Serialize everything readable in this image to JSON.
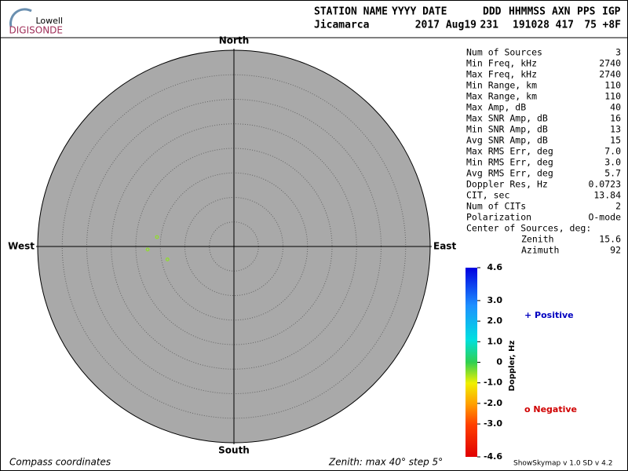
{
  "logo": {
    "line1": "Lowell",
    "line2": "DIGISONDE"
  },
  "header": {
    "columns": [
      "STATION NAME",
      "YYYY DATE",
      "DDD",
      "HHMMSS",
      "AXN",
      "PPS",
      "IGP"
    ],
    "values": [
      "Jicamarca",
      "2017 Aug19",
      "231",
      "191028",
      "417",
      "75",
      "+8F"
    ]
  },
  "plot": {
    "zenith_max": 40,
    "zenith_step": 5,
    "compass": {
      "north": "North",
      "south": "South",
      "east": "East",
      "west": "West"
    },
    "sources": [
      {
        "zenith": 15.8,
        "azimuth": 277,
        "doppler": -0.5
      },
      {
        "zenith": 17.6,
        "azimuth": 268,
        "doppler": -0.5
      },
      {
        "zenith": 13.8,
        "azimuth": 259,
        "doppler": -0.5
      }
    ]
  },
  "stats": {
    "rows": [
      [
        "Num of Sources",
        "3"
      ],
      [
        "Min Freq, kHz",
        "2740"
      ],
      [
        "Max Freq, kHz",
        "2740"
      ],
      [
        "Min Range, km",
        "110"
      ],
      [
        "Max Range, km",
        "110"
      ],
      [
        "Max Amp, dB",
        "40"
      ],
      [
        "Max SNR Amp, dB",
        "16"
      ],
      [
        "Min SNR Amp, dB",
        "13"
      ],
      [
        "Avg SNR Amp, dB",
        "15"
      ],
      [
        "Max RMS Err, deg",
        "7.0"
      ],
      [
        "Min RMS Err, deg",
        "3.0"
      ],
      [
        "Avg RMS Err, deg",
        "5.7"
      ],
      [
        "Doppler Res, Hz",
        "0.0723"
      ],
      [
        "CIT, sec",
        "13.84"
      ],
      [
        "Num of CITs",
        "2"
      ],
      [
        "Polarization",
        "O-mode"
      ]
    ],
    "center_title": "Center of Sources, deg:",
    "center_rows": [
      [
        "Zenith",
        "15.6"
      ],
      [
        "Azimuth",
        "92"
      ]
    ]
  },
  "colorbar": {
    "label": "Doppler, Hz",
    "lim": [
      -4.6,
      4.6
    ],
    "ticks": [
      4.6,
      {
        "value": 3,
        "label": "3.0"
      },
      {
        "value": 2,
        "label": "2.0"
      },
      {
        "value": 1,
        "label": "1.0"
      },
      0,
      {
        "value": -1,
        "label": "-1.0"
      },
      {
        "value": -2,
        "label": "-2.0"
      },
      {
        "value": -3,
        "label": "-3.0"
      },
      -4.6
    ]
  },
  "legend": {
    "positive": "+ Positive",
    "negative": "o Negative"
  },
  "footer": {
    "left": "Compass coordinates",
    "center": "Zenith: max 40°  step 5°",
    "right": "ShowSkymap v 1.0  SD v 4.2"
  }
}
